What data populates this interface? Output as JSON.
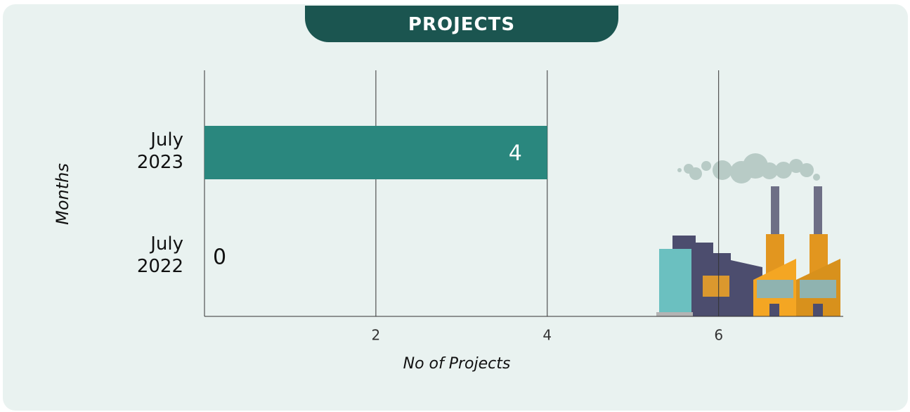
{
  "chart_data": {
    "type": "bar",
    "orientation": "horizontal",
    "title": "PROJECTS",
    "categories": [
      "July 2023",
      "July 2022"
    ],
    "values": [
      4,
      0
    ],
    "color": "#2a877e",
    "xlim": [
      0,
      7.7
    ],
    "xticks": [
      2,
      4,
      6
    ],
    "grid": true,
    "xlabel": "No of Projects",
    "ylabel": "Months"
  }
}
